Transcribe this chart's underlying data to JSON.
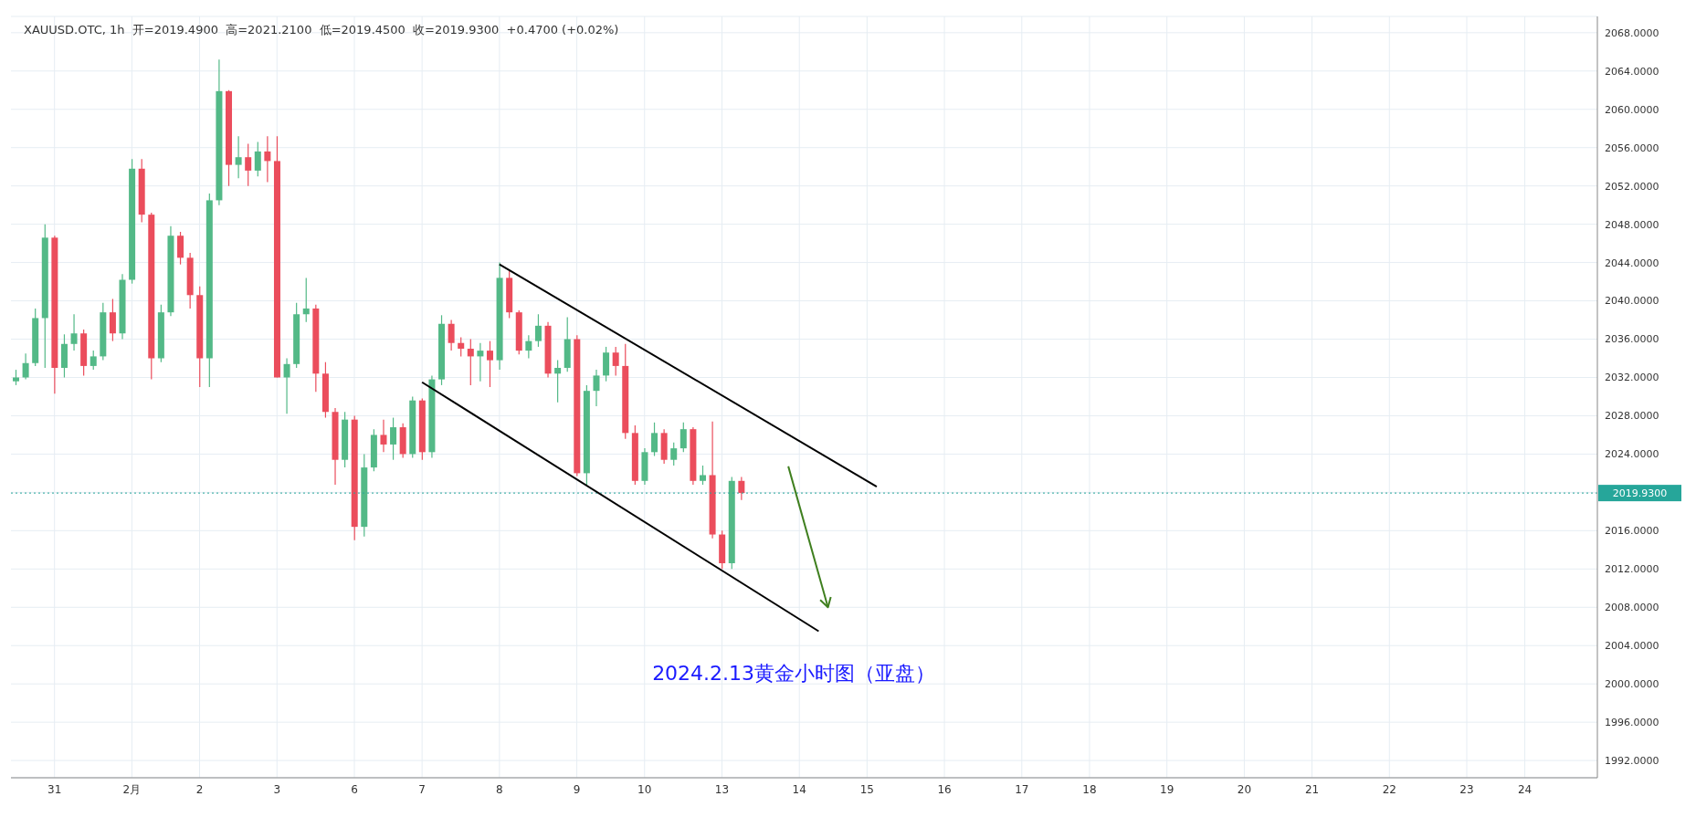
{
  "chart_data": {
    "type": "candlestick",
    "title": "XAUUSD.OTC, 1h  开=2019.4900  高=2021.2100  低=2019.4500  收=2019.9300  +0.4700 (+0.02%)",
    "annotations": [
      "2024.2.13黄金小时图（亚盘）"
    ],
    "categories": [
      null,
      null,
      null,
      null,
      "31",
      null,
      null,
      null,
      null,
      null,
      null,
      null,
      "2月",
      null,
      null,
      null,
      null,
      null,
      null,
      "2",
      null,
      null,
      null,
      null,
      null,
      null,
      null,
      "3",
      null,
      null,
      null,
      null,
      null,
      null,
      null,
      "6",
      null,
      null,
      null,
      null,
      null,
      null,
      "7",
      null,
      null,
      null,
      null,
      null,
      null,
      null,
      "8",
      null,
      null,
      null,
      null,
      null,
      null,
      null,
      "9",
      null,
      null,
      null,
      null,
      null,
      null,
      "10",
      null,
      null,
      null,
      null,
      null,
      null,
      null,
      "13",
      null,
      null,
      null,
      null,
      null,
      null,
      null,
      "14",
      null,
      null,
      null,
      null,
      null,
      null,
      "15",
      null,
      null,
      null,
      null,
      null,
      null,
      null,
      "16",
      null,
      null,
      null,
      null,
      null,
      null,
      null,
      "17",
      null,
      null,
      null,
      null,
      null,
      null,
      "18",
      null,
      null,
      null,
      null,
      null,
      null,
      null,
      "19",
      null,
      null,
      null,
      null,
      null,
      null,
      null,
      "20",
      null,
      null,
      null,
      null,
      null,
      null,
      "21",
      null,
      null,
      null,
      null,
      null,
      null,
      null,
      "22",
      null,
      null,
      null,
      null,
      null,
      null,
      null,
      "23",
      null,
      null,
      null,
      null,
      null,
      "24",
      null,
      null,
      null,
      null,
      null,
      null,
      null
    ],
    "ohlc": [
      [
        2031.6,
        2032.8,
        2031.2,
        2032.0
      ],
      [
        2032.0,
        2034.5,
        2031.8,
        2033.5
      ],
      [
        2033.5,
        2039.2,
        2033.2,
        2038.2
      ],
      [
        2038.2,
        2048.0,
        2033.0,
        2046.6
      ],
      [
        2046.6,
        2046.8,
        2030.3,
        2033.0
      ],
      [
        2033.0,
        2036.5,
        2032.0,
        2035.5
      ],
      [
        2035.5,
        2038.6,
        2034.8,
        2036.6
      ],
      [
        2036.6,
        2037.0,
        2032.2,
        2033.2
      ],
      [
        2033.2,
        2034.8,
        2032.8,
        2034.2
      ],
      [
        2034.2,
        2039.8,
        2033.8,
        2038.8
      ],
      [
        2038.8,
        2040.2,
        2035.8,
        2036.6
      ],
      [
        2036.6,
        2042.8,
        2036.0,
        2042.2
      ],
      [
        2042.2,
        2054.8,
        2041.8,
        2053.8
      ],
      [
        2053.8,
        2054.8,
        2048.2,
        2049.0
      ],
      [
        2049.0,
        2049.2,
        2031.8,
        2034.0
      ],
      [
        2034.0,
        2039.6,
        2033.6,
        2038.8
      ],
      [
        2038.8,
        2047.8,
        2038.4,
        2046.8
      ],
      [
        2046.8,
        2047.2,
        2043.8,
        2044.5
      ],
      [
        2044.5,
        2045.0,
        2039.2,
        2040.6
      ],
      [
        2040.6,
        2041.5,
        2031.0,
        2034.0
      ],
      [
        2034.0,
        2051.2,
        2031.0,
        2050.5
      ],
      [
        2050.5,
        2065.2,
        2050.0,
        2061.9
      ],
      [
        2061.9,
        2062.0,
        2052.0,
        2054.2
      ],
      [
        2054.2,
        2057.2,
        2052.8,
        2055.0
      ],
      [
        2055.0,
        2056.4,
        2052.0,
        2053.6
      ],
      [
        2053.6,
        2056.6,
        2053.0,
        2055.6
      ],
      [
        2055.6,
        2057.2,
        2052.4,
        2054.6
      ],
      [
        2054.6,
        2057.2,
        2032.0,
        2032.0
      ],
      [
        2032.0,
        2034.0,
        2028.2,
        2033.4
      ],
      [
        2033.4,
        2039.8,
        2033.0,
        2038.6
      ],
      [
        2038.6,
        2042.4,
        2037.8,
        2039.2
      ],
      [
        2039.2,
        2039.6,
        2030.5,
        2032.4
      ],
      [
        2032.4,
        2033.6,
        2027.8,
        2028.4
      ],
      [
        2028.4,
        2028.8,
        2020.8,
        2023.4
      ],
      [
        2023.4,
        2028.4,
        2022.6,
        2027.6
      ],
      [
        2027.6,
        2028.0,
        2015.0,
        2016.4
      ],
      [
        2016.4,
        2024.0,
        2015.4,
        2022.6
      ],
      [
        2022.6,
        2026.6,
        2022.2,
        2026.0
      ],
      [
        2026.0,
        2027.6,
        2024.2,
        2025.0
      ],
      [
        2025.0,
        2027.8,
        2023.4,
        2026.8
      ],
      [
        2026.8,
        2027.2,
        2023.6,
        2024.0
      ],
      [
        2024.0,
        2030.0,
        2023.6,
        2029.6
      ],
      [
        2029.6,
        2029.8,
        2023.4,
        2024.2
      ],
      [
        2024.2,
        2032.2,
        2023.6,
        2031.8
      ],
      [
        2031.8,
        2038.5,
        2031.2,
        2037.6
      ],
      [
        2037.6,
        2038.0,
        2034.8,
        2035.6
      ],
      [
        2035.6,
        2036.2,
        2034.2,
        2035.0
      ],
      [
        2035.0,
        2036.0,
        2031.2,
        2034.2
      ],
      [
        2034.2,
        2035.6,
        2031.6,
        2034.8
      ],
      [
        2034.8,
        2035.8,
        2031.0,
        2033.8
      ],
      [
        2033.8,
        2044.0,
        2032.8,
        2042.4
      ],
      [
        2042.4,
        2043.2,
        2038.2,
        2038.8
      ],
      [
        2038.8,
        2039.0,
        2034.4,
        2034.8
      ],
      [
        2034.8,
        2036.4,
        2034.0,
        2035.8
      ],
      [
        2035.8,
        2038.6,
        2035.2,
        2037.4
      ],
      [
        2037.4,
        2037.8,
        2032.0,
        2032.4
      ],
      [
        2032.4,
        2033.8,
        2029.4,
        2033.0
      ],
      [
        2033.0,
        2038.3,
        2032.6,
        2036.0
      ],
      [
        2036.0,
        2036.4,
        2021.7,
        2022.0
      ],
      [
        2022.0,
        2031.2,
        2020.8,
        2030.6
      ],
      [
        2030.6,
        2032.8,
        2029.0,
        2032.2
      ],
      [
        2032.2,
        2035.2,
        2031.6,
        2034.6
      ],
      [
        2034.6,
        2035.2,
        2032.2,
        2033.2
      ],
      [
        2033.2,
        2035.5,
        2025.6,
        2026.2
      ],
      [
        2026.2,
        2027.0,
        2020.8,
        2021.2
      ],
      [
        2021.2,
        2024.6,
        2020.8,
        2024.2
      ],
      [
        2024.2,
        2027.3,
        2023.8,
        2026.2
      ],
      [
        2026.2,
        2026.6,
        2023.0,
        2023.4
      ],
      [
        2023.4,
        2025.2,
        2022.8,
        2024.6
      ],
      [
        2024.6,
        2027.3,
        2024.2,
        2026.6
      ],
      [
        2026.6,
        2026.8,
        2020.8,
        2021.2
      ],
      [
        2021.2,
        2022.8,
        2020.8,
        2021.8
      ],
      [
        2021.8,
        2027.4,
        2015.2,
        2015.6
      ],
      [
        2015.6,
        2016.0,
        2012.0,
        2012.6
      ],
      [
        2012.6,
        2021.6,
        2012.0,
        2021.2
      ],
      [
        2021.2,
        2021.6,
        2019.2,
        2019.93
      ],
      null,
      null,
      null,
      null,
      null,
      null,
      null,
      null,
      null,
      null,
      null,
      null,
      null,
      null,
      null,
      null,
      null,
      null,
      null,
      null,
      null,
      null,
      null,
      null,
      null,
      null,
      null,
      null,
      null,
      null,
      null,
      null,
      null,
      null,
      null,
      null,
      null,
      null,
      null,
      null,
      null,
      null,
      null,
      null,
      null,
      null,
      null,
      null,
      null,
      null,
      null,
      null,
      null,
      null,
      null,
      null,
      null,
      null,
      null,
      null,
      null,
      null,
      null,
      null,
      null,
      null,
      null,
      null,
      null,
      null,
      null,
      null,
      null,
      null,
      null,
      null,
      null,
      null,
      null,
      null,
      null,
      null,
      null,
      null,
      null,
      null,
      null,
      null
    ],
    "colors": [
      "#53b987",
      "#53b987",
      "#53b987",
      "#53b987",
      "#eb4d5c",
      "#53b987",
      "#53b987",
      "#eb4d5c",
      "#53b987",
      "#53b987",
      "#eb4d5c",
      "#53b987",
      "#53b987",
      "#eb4d5c",
      "#eb4d5c",
      "#53b987",
      "#53b987",
      "#eb4d5c",
      "#eb4d5c",
      "#eb4d5c",
      "#53b987",
      "#53b987",
      "#eb4d5c",
      "#53b987",
      "#eb4d5c",
      "#53b987",
      "#eb4d5c",
      "#eb4d5c",
      "#53b987",
      "#53b987",
      "#53b987",
      "#eb4d5c",
      "#eb4d5c",
      "#eb4d5c",
      "#53b987",
      "#eb4d5c",
      "#53b987",
      "#53b987",
      "#eb4d5c",
      "#53b987",
      "#eb4d5c",
      "#53b987",
      "#eb4d5c",
      "#53b987",
      "#53b987",
      "#eb4d5c",
      "#eb4d5c",
      "#eb4d5c",
      "#53b987",
      "#eb4d5c",
      "#53b987",
      "#eb4d5c",
      "#eb4d5c",
      "#53b987",
      "#53b987",
      "#eb4d5c",
      "#53b987",
      "#53b987",
      "#eb4d5c",
      "#53b987",
      "#53b987",
      "#53b987",
      "#eb4d5c",
      "#eb4d5c",
      "#eb4d5c",
      "#53b987",
      "#53b987",
      "#eb4d5c",
      "#53b987",
      "#53b987",
      "#eb4d5c",
      "#53b987",
      "#eb4d5c",
      "#eb4d5c",
      "#53b987",
      "#eb4d5c",
      null,
      null,
      null,
      null,
      null,
      null,
      null,
      null,
      null,
      null,
      null,
      null,
      null,
      null,
      null,
      null,
      null,
      null,
      null,
      null,
      null,
      null,
      null,
      null,
      null,
      null,
      null,
      null,
      null,
      null,
      null,
      null,
      null,
      null,
      null,
      null,
      null,
      null,
      null,
      null,
      null,
      null,
      null,
      null,
      null,
      null,
      null,
      null,
      null,
      null,
      null,
      null,
      null,
      null,
      null,
      null,
      null,
      null,
      null,
      null,
      null,
      null,
      null,
      null,
      null,
      null,
      null,
      null,
      null,
      null,
      null,
      null,
      null,
      null,
      null,
      null,
      null,
      null,
      null,
      null,
      null,
      null,
      null,
      null,
      null,
      null,
      null,
      null
    ],
    "series": [
      {
        "type": "line",
        "color": "#000000",
        "values": [
          null,
          null,
          null,
          null,
          null,
          null,
          null,
          null,
          null,
          null,
          null,
          null,
          null,
          null,
          null,
          null,
          null,
          null,
          null,
          null,
          null,
          null,
          null,
          null,
          null,
          null,
          null,
          null,
          null,
          null,
          null,
          null,
          null,
          null,
          null,
          null,
          null,
          null,
          null,
          null,
          null,
          null,
          null,
          null,
          null,
          null,
          null,
          null,
          null,
          null,
          2043.8,
          null,
          null,
          null,
          null,
          null,
          null,
          null,
          null,
          null,
          null,
          null,
          null,
          null,
          null,
          null,
          null,
          null,
          null,
          null,
          null,
          null,
          null,
          null,
          null,
          null,
          null,
          null,
          null,
          null,
          null,
          null,
          null,
          null,
          null,
          null,
          null,
          null,
          null,
          2020.6,
          null,
          null,
          null,
          null,
          null,
          null,
          null,
          null,
          null,
          null,
          null,
          null,
          null,
          null,
          null,
          null,
          null,
          null,
          null,
          null,
          null,
          null,
          null,
          null,
          null,
          null,
          null,
          null,
          null,
          null,
          null,
          null,
          null,
          null,
          null,
          null,
          null,
          null,
          null,
          null,
          null,
          null,
          null,
          null,
          null,
          null,
          null,
          null,
          null,
          null,
          null,
          null,
          null,
          null,
          null,
          null,
          null,
          null,
          null,
          null,
          null,
          null,
          null,
          null,
          null,
          null,
          null,
          null,
          null,
          null,
          null,
          null,
          null,
          null
        ]
      },
      {
        "type": "line",
        "color": "#000000",
        "values": [
          null,
          null,
          null,
          null,
          null,
          null,
          null,
          null,
          null,
          null,
          null,
          null,
          null,
          null,
          null,
          null,
          null,
          null,
          null,
          null,
          null,
          null,
          null,
          null,
          null,
          null,
          null,
          null,
          null,
          null,
          null,
          null,
          null,
          null,
          null,
          null,
          null,
          null,
          null,
          null,
          null,
          null,
          2031.5,
          null,
          null,
          null,
          null,
          null,
          null,
          null,
          null,
          null,
          null,
          null,
          null,
          null,
          null,
          null,
          null,
          null,
          null,
          null,
          null,
          null,
          null,
          null,
          null,
          null,
          null,
          null,
          null,
          null,
          null,
          null,
          null,
          null,
          null,
          null,
          null,
          null,
          null,
          null,
          null,
          2005.5,
          null,
          null,
          null,
          null,
          null,
          null,
          null,
          null,
          null,
          null,
          null,
          null,
          null,
          null,
          null,
          null,
          null,
          null,
          null,
          null,
          null,
          null,
          null,
          null,
          null,
          null,
          null,
          null,
          null,
          null,
          null,
          null,
          null,
          null,
          null,
          null,
          null,
          null,
          null,
          null,
          null,
          null,
          null,
          null,
          null,
          null,
          null,
          null,
          null,
          null,
          null,
          null,
          null,
          null,
          null,
          null,
          null,
          null,
          null,
          null,
          null,
          null,
          null,
          null,
          null,
          null,
          null,
          null,
          null,
          null,
          null,
          null,
          null,
          null,
          null,
          null,
          null,
          null,
          null,
          null
        ]
      }
    ],
    "ylim": [
      1990.2,
      2069.7
    ],
    "yticks": [
      {
        "value": 1992,
        "label": "1992.0000"
      },
      {
        "value": 1996,
        "label": "1996.0000"
      },
      {
        "value": 2000,
        "label": "2000.0000"
      },
      {
        "value": 2004,
        "label": "2004.0000"
      },
      {
        "value": 2008,
        "label": "2008.0000"
      },
      {
        "value": 2012,
        "label": "2012.0000"
      },
      {
        "value": 2016,
        "label": "2016.0000"
      },
      {
        "value": 2020,
        "label": null
      },
      {
        "value": 2024,
        "label": "2024.0000"
      },
      {
        "value": 2028,
        "label": "2028.0000"
      },
      {
        "value": 2032,
        "label": "2032.0000"
      },
      {
        "value": 2036,
        "label": "2036.0000"
      },
      {
        "value": 2040,
        "label": "2040.0000"
      },
      {
        "value": 2044,
        "label": "2044.0000"
      },
      {
        "value": 2048,
        "label": "2048.0000"
      },
      {
        "value": 2052,
        "label": "2052.0000"
      },
      {
        "value": 2056,
        "label": "2056.0000"
      },
      {
        "value": 2060,
        "label": "2060.0000"
      },
      {
        "value": 2064,
        "label": "2064.0000"
      },
      {
        "value": 2068,
        "label": "2068.0000"
      }
    ],
    "ref_lines": [
      {
        "axis": "y",
        "value": 2019.93,
        "label": "2019.9300",
        "color": "#26a69a",
        "line_style": "dotted"
      }
    ],
    "grid": true
  }
}
